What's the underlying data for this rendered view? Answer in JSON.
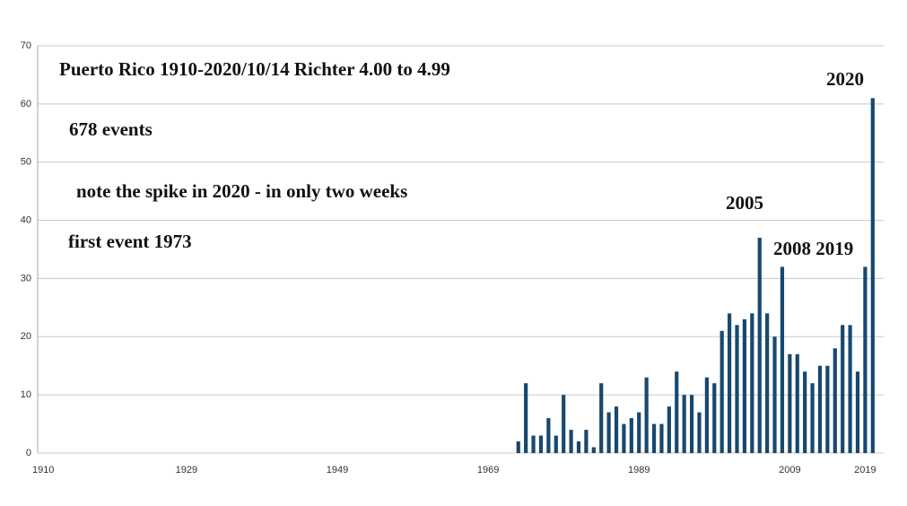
{
  "chart_data": {
    "type": "bar",
    "annotations": [
      "Puerto Rico  1910-2020/10/14    Richter 4.00 to 4.99",
      "678 events",
      "note the spike in 2020 - in only two weeks",
      "first event 1973",
      "2005",
      "2008 2019",
      "2020"
    ],
    "categories": [
      "1910",
      null,
      null,
      null,
      null,
      null,
      null,
      null,
      null,
      null,
      null,
      null,
      null,
      null,
      null,
      null,
      null,
      null,
      null,
      "1929",
      null,
      null,
      null,
      null,
      null,
      null,
      null,
      null,
      null,
      null,
      null,
      null,
      null,
      null,
      null,
      null,
      null,
      null,
      null,
      "1949",
      null,
      null,
      null,
      null,
      null,
      null,
      null,
      null,
      null,
      null,
      null,
      null,
      null,
      null,
      null,
      null,
      null,
      null,
      null,
      "1969",
      null,
      null,
      null,
      null,
      null,
      null,
      null,
      null,
      null,
      null,
      null,
      null,
      null,
      null,
      null,
      null,
      null,
      null,
      null,
      "1989",
      null,
      null,
      null,
      null,
      null,
      null,
      null,
      null,
      null,
      null,
      null,
      null,
      null,
      null,
      null,
      null,
      null,
      null,
      null,
      "2009",
      null,
      null,
      null,
      null,
      null,
      null,
      null,
      null,
      null,
      "2019",
      null
    ],
    "values": [
      0,
      0,
      0,
      0,
      0,
      0,
      0,
      0,
      0,
      0,
      0,
      0,
      0,
      0,
      0,
      0,
      0,
      0,
      0,
      0,
      0,
      0,
      0,
      0,
      0,
      0,
      0,
      0,
      0,
      0,
      0,
      0,
      0,
      0,
      0,
      0,
      0,
      0,
      0,
      0,
      0,
      0,
      0,
      0,
      0,
      0,
      0,
      0,
      0,
      0,
      0,
      0,
      0,
      0,
      0,
      0,
      0,
      0,
      0,
      0,
      0,
      0,
      0,
      2,
      12,
      3,
      3,
      6,
      3,
      10,
      4,
      2,
      4,
      1,
      12,
      7,
      8,
      5,
      6,
      7,
      13,
      5,
      5,
      8,
      14,
      10,
      10,
      7,
      13,
      12,
      21,
      24,
      22,
      23,
      24,
      37,
      24,
      20,
      32,
      17,
      17,
      14,
      12,
      15,
      15,
      18,
      22,
      22,
      14,
      32,
      61
    ],
    "color": "#17486f",
    "ylim": [
      0,
      70
    ],
    "yticks": [
      0,
      10,
      20,
      30,
      40,
      50,
      60,
      70
    ],
    "grid": true
  }
}
